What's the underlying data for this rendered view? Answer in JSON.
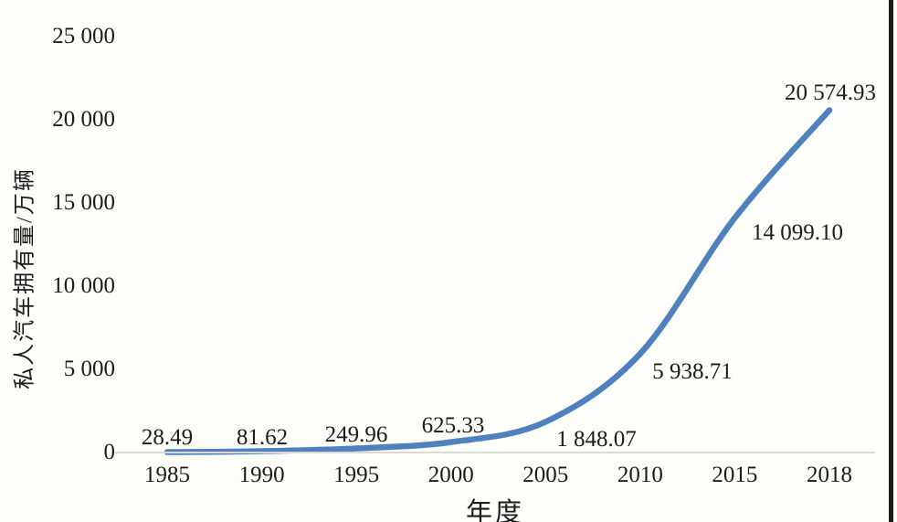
{
  "page": {
    "background_color": "#fdfdf9",
    "text_color": "#1c1c1c",
    "border_color": "#1a1a1a"
  },
  "chart_data": {
    "type": "line",
    "title": "",
    "xlabel": "年度",
    "ylabel": "私人汽车拥有量/万辆",
    "categories": [
      "1985",
      "1990",
      "1995",
      "2000",
      "2005",
      "2010",
      "2015",
      "2018"
    ],
    "series": [
      {
        "name": "私人汽车拥有量",
        "values": [
          28.49,
          81.62,
          249.96,
          625.33,
          1848.07,
          5938.71,
          14099.1,
          20574.93
        ],
        "point_labels": [
          "28.49",
          "81.62",
          "249.96",
          "625.33",
          "1 848.07",
          "5 938.71",
          "14 099.10",
          "20 574.93"
        ],
        "color": "#4e81bd"
      }
    ],
    "ylim": [
      0,
      25000
    ],
    "ytick_values": [
      0,
      5000,
      10000,
      15000,
      20000,
      25000
    ],
    "ytick_labels": [
      "0",
      "5 000",
      "10 000",
      "15 000",
      "20 000",
      "25 000"
    ],
    "grid": false,
    "legend": "none",
    "axis_line_color": "#d9d9d9",
    "line_style": "smooth"
  }
}
